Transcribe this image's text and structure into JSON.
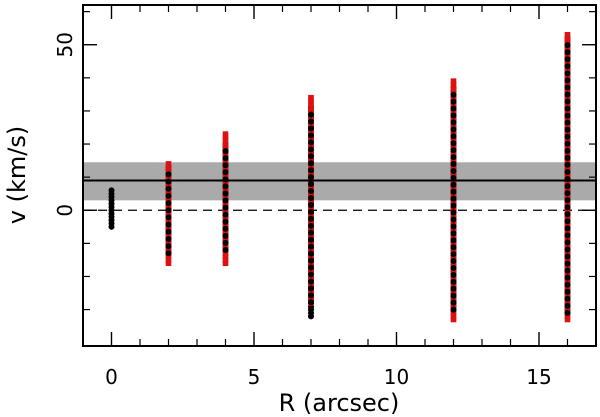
{
  "chart_data": {
    "type": "scatter",
    "xlabel": "R (arcsec)",
    "ylabel": "v (km/s)",
    "xlim": [
      -1.0,
      17.0
    ],
    "ylim": [
      -41.0,
      62.0
    ],
    "x_ticks": [
      0,
      5,
      10,
      15
    ],
    "x_tick_labels": [
      "0",
      "5",
      "10",
      "15"
    ],
    "y_ticks": [
      0,
      50
    ],
    "y_tick_labels": [
      "0",
      "50"
    ],
    "x_minor_ticks": [
      1,
      2,
      3,
      4,
      6,
      7,
      8,
      9,
      11,
      12,
      13,
      14,
      16
    ],
    "y_minor_ticks": [
      -30,
      -20,
      -10,
      10,
      20,
      30,
      40,
      60
    ],
    "grid": false,
    "legend": "none",
    "shaded_band": {
      "y_low": 3,
      "y_high": 14.5,
      "color": "#aaaaaa"
    },
    "mean_line": {
      "y": 9,
      "style": "solid",
      "color": "#000000"
    },
    "zero_line": {
      "y": 0,
      "style": "dashed",
      "color": "#000000"
    },
    "series": [
      {
        "color": "#000000",
        "marker": "circle",
        "groups": [
          {
            "x": 0,
            "y_min": -5,
            "y_max": 6
          },
          {
            "x": 2,
            "y_min": -13,
            "y_max": 13
          },
          {
            "x": 4,
            "y_min": -12,
            "y_max": 20
          },
          {
            "x": 7,
            "y_min": -32,
            "y_max": 31
          },
          {
            "x": 12,
            "y_min": -30,
            "y_max": 37
          },
          {
            "x": 16,
            "y_min": -31,
            "y_max": 52
          }
        ]
      },
      {
        "color": "#dd1111",
        "marker": "square",
        "groups": [
          {
            "x": 2,
            "y_min": -16,
            "y_max": 14
          },
          {
            "x": 4,
            "y_min": -16,
            "y_max": 23
          },
          {
            "x": 7,
            "y_min": -28,
            "y_max": 34
          },
          {
            "x": 12,
            "y_min": -33,
            "y_max": 39
          },
          {
            "x": 16,
            "y_min": -33,
            "y_max": 53
          }
        ]
      }
    ]
  }
}
